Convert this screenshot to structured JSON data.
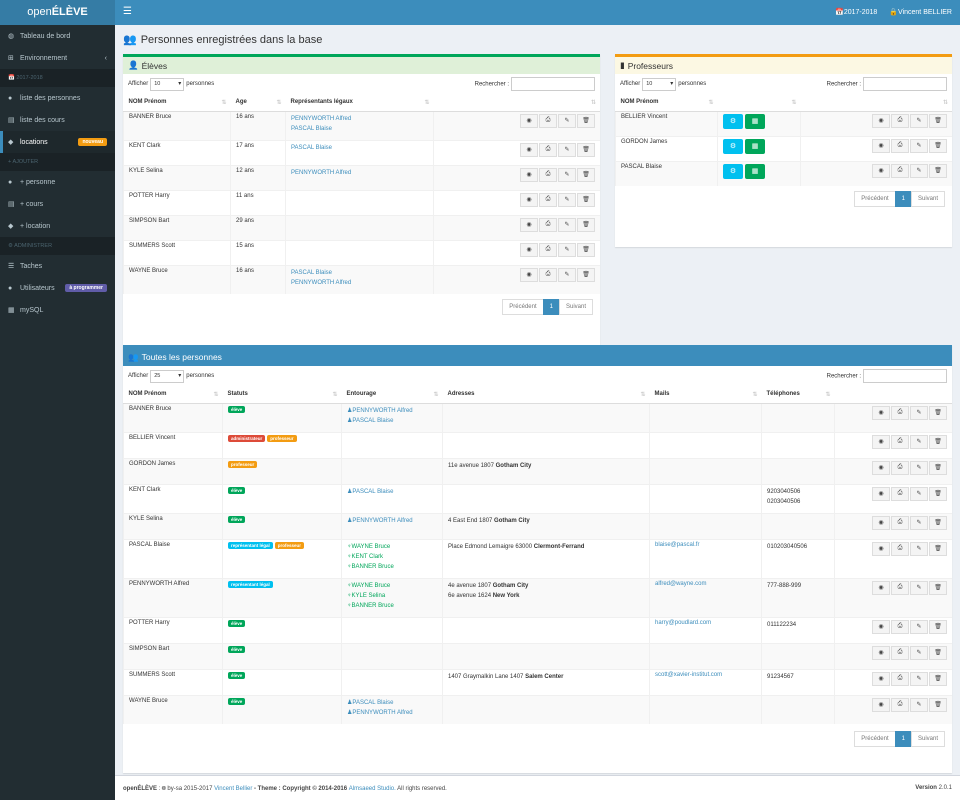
{
  "app": {
    "logo_pre": "open",
    "logo_main": "ÉLÈVE"
  },
  "navbar": {
    "year": "2017-2018",
    "user": "Vincent BELLIER"
  },
  "sidebar": {
    "items": [
      {
        "label": "Tableau de bord",
        "icon": "dashboard-icon"
      },
      {
        "label": "Environnement",
        "icon": "sitemap-icon"
      }
    ],
    "header1": "2017-2018",
    "items2": [
      {
        "label": "liste des personnes",
        "icon": "users-icon"
      },
      {
        "label": "liste des cours",
        "icon": "book-icon"
      },
      {
        "label": "locations",
        "icon": "tag-icon",
        "badge": "nouveau"
      }
    ],
    "header2": "AJOUTER",
    "items3": [
      {
        "label": "+ personne",
        "icon": "user-plus-icon"
      },
      {
        "label": "+ cours",
        "icon": "book-icon"
      },
      {
        "label": "+ location",
        "icon": "tag-icon"
      }
    ],
    "header3": "ADMINISTRER",
    "items4": [
      {
        "label": "Taches",
        "icon": "tasks-icon"
      },
      {
        "label": "Utilisateurs",
        "icon": "user-icon",
        "badge": "à programmer"
      },
      {
        "label": "mySQL",
        "icon": "database-icon"
      }
    ]
  },
  "page": {
    "title": "Personnes enregistrées dans la base"
  },
  "common": {
    "show": "Afficher",
    "entries": "personnes",
    "search": "Rechercher :",
    "prev": "Précédent",
    "next": "Suivant",
    "page1": "1"
  },
  "eleves": {
    "title": "Élèves",
    "length": "10",
    "headers": [
      "NOM Prénom",
      "Age",
      "Représentants légaux"
    ],
    "rows": [
      {
        "name": "BANNER Bruce",
        "age": "16 ans",
        "reps": [
          "PENNYWORTH Alfred",
          "PASCAL Blaise"
        ]
      },
      {
        "name": "KENT Clark",
        "age": "17 ans",
        "reps": [
          "PASCAL Blaise"
        ]
      },
      {
        "name": "KYLE Selina",
        "age": "12 ans",
        "reps": [
          "PENNYWORTH Alfred"
        ]
      },
      {
        "name": "POTTER Harry",
        "age": "11 ans",
        "reps": []
      },
      {
        "name": "SIMPSON Bart",
        "age": "29 ans",
        "reps": []
      },
      {
        "name": "SUMMERS Scott",
        "age": "15 ans",
        "reps": []
      },
      {
        "name": "WAYNE Bruce",
        "age": "16 ans",
        "reps": [
          "PASCAL Blaise",
          "PENNYWORTH Alfred"
        ]
      }
    ]
  },
  "profs": {
    "title": "Professeurs",
    "length": "10",
    "headers": [
      "NOM Prénom"
    ],
    "rows": [
      {
        "name": "BELLIER Vincent"
      },
      {
        "name": "GORDON James"
      },
      {
        "name": "PASCAL Blaise"
      }
    ]
  },
  "toutes": {
    "title": "Toutes les personnes",
    "length": "25",
    "headers": [
      "NOM Prénom",
      "Statuts",
      "Entourage",
      "Adresses",
      "Mails",
      "Téléphones"
    ],
    "rows": [
      {
        "name": "BANNER Bruce",
        "statuts": [
          {
            "t": "élève",
            "c": "#00a65a"
          }
        ],
        "ent": [
          {
            "n": "PENNYWORTH Alfred",
            "g": false
          },
          {
            "n": "PASCAL Blaise",
            "g": false
          }
        ],
        "adr": [],
        "mail": "",
        "tel": []
      },
      {
        "name": "BELLIER Vincent",
        "statuts": [
          {
            "t": "administrateur",
            "c": "#dd4b39"
          },
          {
            "t": "professeur",
            "c": "#f39c12"
          }
        ],
        "ent": [],
        "adr": [],
        "mail": "",
        "tel": []
      },
      {
        "name": "GORDON James",
        "statuts": [
          {
            "t": "professeur",
            "c": "#f39c12"
          }
        ],
        "ent": [],
        "adr": [
          {
            "a": "11e avenue 1807 ",
            "c": "Gotham City"
          }
        ],
        "mail": "",
        "tel": []
      },
      {
        "name": "KENT Clark",
        "statuts": [
          {
            "t": "élève",
            "c": "#00a65a"
          }
        ],
        "ent": [
          {
            "n": "PASCAL Blaise",
            "g": false
          }
        ],
        "adr": [],
        "mail": "",
        "tel": [
          "9203040506",
          "0203040506"
        ]
      },
      {
        "name": "KYLE Selina",
        "statuts": [
          {
            "t": "élève",
            "c": "#00a65a"
          }
        ],
        "ent": [
          {
            "n": "PENNYWORTH Alfred",
            "g": false
          }
        ],
        "adr": [
          {
            "a": "4 East End 1807 ",
            "c": "Gotham City"
          }
        ],
        "mail": "",
        "tel": []
      },
      {
        "name": "PASCAL Blaise",
        "statuts": [
          {
            "t": "représentant légal",
            "c": "#00c0ef"
          },
          {
            "t": "professeur",
            "c": "#f39c12"
          }
        ],
        "ent": [
          {
            "n": "WAYNE Bruce",
            "g": true
          },
          {
            "n": "KENT Clark",
            "g": true
          },
          {
            "n": "BANNER Bruce",
            "g": true
          }
        ],
        "adr": [
          {
            "a": "Place Edmond Lemaigre 63000 ",
            "c": "Clermont-Ferrand"
          }
        ],
        "mail": "blaise@pascal.fr",
        "tel": [
          "010203040506"
        ]
      },
      {
        "name": "PENNYWORTH Alfred",
        "statuts": [
          {
            "t": "représentant légal",
            "c": "#00c0ef"
          }
        ],
        "ent": [
          {
            "n": "WAYNE Bruce",
            "g": true
          },
          {
            "n": "KYLE Selina",
            "g": true
          },
          {
            "n": "BANNER Bruce",
            "g": true
          }
        ],
        "adr": [
          {
            "a": "4e avenue 1807 ",
            "c": "Gotham City"
          },
          {
            "a": "6e avenue 1624 ",
            "c": "New York"
          }
        ],
        "mail": "alfred@wayne.com",
        "tel": [
          "777-888-999"
        ]
      },
      {
        "name": "POTTER Harry",
        "statuts": [
          {
            "t": "élève",
            "c": "#00a65a"
          }
        ],
        "ent": [],
        "adr": [],
        "mail": "harry@poudlard.com",
        "tel": [
          "011122234"
        ]
      },
      {
        "name": "SIMPSON Bart",
        "statuts": [
          {
            "t": "élève",
            "c": "#00a65a"
          }
        ],
        "ent": [],
        "adr": [],
        "mail": "",
        "tel": []
      },
      {
        "name": "SUMMERS Scott",
        "statuts": [
          {
            "t": "élève",
            "c": "#00a65a"
          }
        ],
        "ent": [],
        "adr": [
          {
            "a": "1407 Graymalkin Lane 1407 ",
            "c": "Salem Center"
          }
        ],
        "mail": "scott@xavier-institut.com",
        "tel": [
          "91234567"
        ]
      },
      {
        "name": "WAYNE Bruce",
        "statuts": [
          {
            "t": "élève",
            "c": "#00a65a"
          }
        ],
        "ent": [
          {
            "n": "PASCAL Blaise",
            "g": false
          },
          {
            "n": "PENNYWORTH Alfred",
            "g": false
          }
        ],
        "adr": [],
        "mail": "",
        "tel": []
      }
    ]
  },
  "footer": {
    "brand": "openÉLÈVE",
    "lic": " : 🅭 by-sa 2015-2017 ",
    "author": "Vincent Bellier",
    "theme": " - Theme : Copyright © 2014-2016 ",
    "studio": "Almsaeed Studio.",
    "rights": " All rights reserved.",
    "version_label": "Version",
    "version": "2.0.1"
  },
  "colors": {
    "primary": "#3c8dbc",
    "success": "#00a65a",
    "warning": "#f39c12",
    "info": "#00c0ef",
    "danger": "#dd4b39",
    "purple": "#605ca8"
  }
}
